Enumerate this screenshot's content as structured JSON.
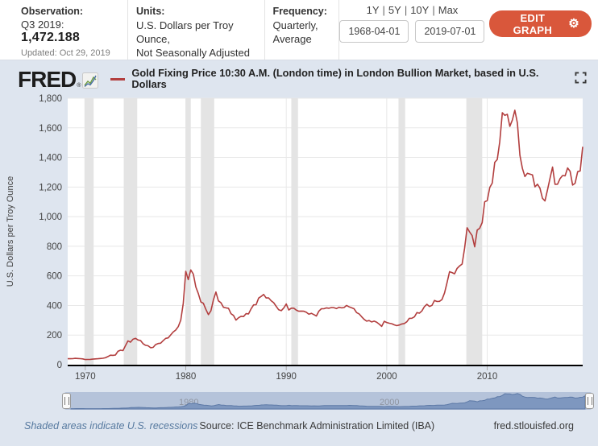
{
  "header": {
    "observation": {
      "label": "Observation:",
      "period": "Q3 2019:",
      "value": "1,472.188",
      "updated": "Updated: Oct 29, 2019"
    },
    "units": {
      "label": "Units:",
      "line1": "U.S. Dollars per Troy Ounce,",
      "line2": "Not Seasonally Adjusted"
    },
    "frequency": {
      "label": "Frequency:",
      "line1": "Quarterly,",
      "line2": "Average"
    },
    "controls": {
      "ranges": [
        "1Y",
        "5Y",
        "10Y",
        "Max"
      ],
      "separator": "|",
      "start_date": "1968-04-01",
      "end_date": "2019-07-01",
      "edit_button": "EDIT GRAPH",
      "gear_icon": "⚙"
    }
  },
  "brand": {
    "logo": "FRED",
    "registered": "®"
  },
  "slider": {
    "labels": [
      "1980",
      "2000"
    ]
  },
  "footer": {
    "recession_note": "Shaded areas indicate U.S. recessions",
    "source": "Source: ICE Benchmark Administration Limited (IBA)",
    "site": "fred.stlouisfed.org"
  },
  "chart_data": {
    "type": "line",
    "title": "Gold Fixing Price 10:30 A.M. (London time) in London Bullion Market, based in U.S. Dollars",
    "ylabel": "U.S. Dollars per Troy Ounce",
    "xlabel": "",
    "x_range": [
      1968.25,
      2019.5
    ],
    "ylim": [
      0,
      1800
    ],
    "y_ticks": [
      0,
      200,
      400,
      600,
      800,
      1000,
      1200,
      1400,
      1600,
      1800
    ],
    "y_tick_labels": [
      "0",
      "200",
      "400",
      "600",
      "800",
      "1,000",
      "1,200",
      "1,400",
      "1,600",
      "1,800"
    ],
    "x_ticks": [
      1970,
      1980,
      1990,
      2000,
      2010
    ],
    "grid": true,
    "legend_position": "top",
    "line_color": "#b23e3e",
    "recession_color": "#e4e4e4",
    "grid_color": "#e8e8e8",
    "recessions": [
      [
        1969.92,
        1970.83
      ],
      [
        1973.83,
        1975.17
      ],
      [
        1980.0,
        1980.5
      ],
      [
        1981.5,
        1982.83
      ],
      [
        1990.5,
        1991.17
      ],
      [
        2001.17,
        2001.83
      ],
      [
        2007.92,
        2009.5
      ]
    ],
    "series": [
      {
        "name": "Gold Fixing Price 10:30 A.M. (London time) in London Bullion Market, based in U.S. Dollars",
        "points": [
          [
            1968.25,
            40
          ],
          [
            1968.5,
            40
          ],
          [
            1968.75,
            41
          ],
          [
            1969,
            43
          ],
          [
            1969.25,
            42
          ],
          [
            1969.5,
            41
          ],
          [
            1969.75,
            39
          ],
          [
            1970,
            35
          ],
          [
            1970.25,
            35.5
          ],
          [
            1970.5,
            36
          ],
          [
            1970.75,
            37.5
          ],
          [
            1971,
            39
          ],
          [
            1971.25,
            40
          ],
          [
            1971.5,
            42
          ],
          [
            1971.75,
            43.5
          ],
          [
            1972,
            47
          ],
          [
            1972.25,
            55
          ],
          [
            1972.5,
            64
          ],
          [
            1972.75,
            63
          ],
          [
            1973,
            65
          ],
          [
            1973.25,
            90
          ],
          [
            1973.5,
            98
          ],
          [
            1973.75,
            95
          ],
          [
            1974,
            129
          ],
          [
            1974.25,
            161
          ],
          [
            1974.5,
            152
          ],
          [
            1974.75,
            172
          ],
          [
            1975,
            178
          ],
          [
            1975.25,
            167
          ],
          [
            1975.5,
            163
          ],
          [
            1975.75,
            142
          ],
          [
            1976,
            131
          ],
          [
            1976.25,
            128
          ],
          [
            1976.5,
            115
          ],
          [
            1976.75,
            117
          ],
          [
            1977,
            136
          ],
          [
            1977.25,
            143
          ],
          [
            1977.5,
            145
          ],
          [
            1977.75,
            162
          ],
          [
            1978,
            178
          ],
          [
            1978.25,
            181
          ],
          [
            1978.5,
            201
          ],
          [
            1978.75,
            221
          ],
          [
            1979,
            234
          ],
          [
            1979.25,
            257
          ],
          [
            1979.5,
            301
          ],
          [
            1979.75,
            415
          ],
          [
            1980,
            631
          ],
          [
            1980.25,
            575
          ],
          [
            1980.5,
            640
          ],
          [
            1980.75,
            612
          ],
          [
            1981,
            525
          ],
          [
            1981.25,
            480
          ],
          [
            1981.5,
            424
          ],
          [
            1981.75,
            415
          ],
          [
            1982,
            374
          ],
          [
            1982.25,
            338
          ],
          [
            1982.5,
            364
          ],
          [
            1982.75,
            438
          ],
          [
            1983,
            491
          ],
          [
            1983.25,
            431
          ],
          [
            1983.5,
            419
          ],
          [
            1983.75,
            388
          ],
          [
            1984,
            384
          ],
          [
            1984.25,
            381
          ],
          [
            1984.5,
            345
          ],
          [
            1984.75,
            333
          ],
          [
            1985,
            301
          ],
          [
            1985.25,
            317
          ],
          [
            1985.5,
            327
          ],
          [
            1985.75,
            325
          ],
          [
            1986,
            345
          ],
          [
            1986.25,
            343
          ],
          [
            1986.5,
            377
          ],
          [
            1986.75,
            404
          ],
          [
            1987,
            405
          ],
          [
            1987.25,
            450
          ],
          [
            1987.5,
            461
          ],
          [
            1987.75,
            475
          ],
          [
            1988,
            451
          ],
          [
            1988.25,
            451
          ],
          [
            1988.5,
            432
          ],
          [
            1988.75,
            419
          ],
          [
            1989,
            394
          ],
          [
            1989.25,
            371
          ],
          [
            1989.5,
            365
          ],
          [
            1989.75,
            383
          ],
          [
            1990,
            410
          ],
          [
            1990.25,
            369
          ],
          [
            1990.5,
            382
          ],
          [
            1990.75,
            382
          ],
          [
            1991,
            368
          ],
          [
            1991.25,
            361
          ],
          [
            1991.5,
            362
          ],
          [
            1991.75,
            361
          ],
          [
            1992,
            354
          ],
          [
            1992.25,
            341
          ],
          [
            1992.5,
            347
          ],
          [
            1992.75,
            338
          ],
          [
            1993,
            329
          ],
          [
            1993.25,
            362
          ],
          [
            1993.5,
            378
          ],
          [
            1993.75,
            378
          ],
          [
            1994,
            384
          ],
          [
            1994.25,
            381
          ],
          [
            1994.5,
            386
          ],
          [
            1994.75,
            385
          ],
          [
            1995,
            379
          ],
          [
            1995.25,
            388
          ],
          [
            1995.5,
            384
          ],
          [
            1995.75,
            386
          ],
          [
            1996,
            400
          ],
          [
            1996.25,
            391
          ],
          [
            1996.5,
            385
          ],
          [
            1996.75,
            378
          ],
          [
            1997,
            352
          ],
          [
            1997.25,
            343
          ],
          [
            1997.5,
            324
          ],
          [
            1997.75,
            306
          ],
          [
            1998,
            294
          ],
          [
            1998.25,
            298
          ],
          [
            1998.5,
            289
          ],
          [
            1998.75,
            294
          ],
          [
            1999,
            287
          ],
          [
            1999.25,
            274
          ],
          [
            1999.5,
            259
          ],
          [
            1999.75,
            293
          ],
          [
            2000,
            285
          ],
          [
            2000.25,
            280
          ],
          [
            2000.5,
            277
          ],
          [
            2000.75,
            269
          ],
          [
            2001,
            264
          ],
          [
            2001.25,
            268
          ],
          [
            2001.5,
            275
          ],
          [
            2001.75,
            278
          ],
          [
            2002,
            290
          ],
          [
            2002.25,
            313
          ],
          [
            2002.5,
            314
          ],
          [
            2002.75,
            323
          ],
          [
            2003,
            352
          ],
          [
            2003.25,
            348
          ],
          [
            2003.5,
            363
          ],
          [
            2003.75,
            392
          ],
          [
            2004,
            408
          ],
          [
            2004.25,
            393
          ],
          [
            2004.5,
            401
          ],
          [
            2004.75,
            434
          ],
          [
            2005,
            427
          ],
          [
            2005.25,
            428
          ],
          [
            2005.5,
            440
          ],
          [
            2005.75,
            485
          ],
          [
            2006,
            554
          ],
          [
            2006.25,
            628
          ],
          [
            2006.5,
            622
          ],
          [
            2006.75,
            614
          ],
          [
            2007,
            650
          ],
          [
            2007.25,
            667
          ],
          [
            2007.5,
            680
          ],
          [
            2007.75,
            788
          ],
          [
            2008,
            925
          ],
          [
            2008.25,
            896
          ],
          [
            2008.5,
            872
          ],
          [
            2008.75,
            796
          ],
          [
            2009,
            909
          ],
          [
            2009.25,
            922
          ],
          [
            2009.5,
            960
          ],
          [
            2009.75,
            1100
          ],
          [
            2010,
            1109
          ],
          [
            2010.25,
            1197
          ],
          [
            2010.5,
            1227
          ],
          [
            2010.75,
            1367
          ],
          [
            2011,
            1386
          ],
          [
            2011.25,
            1506
          ],
          [
            2011.5,
            1702
          ],
          [
            2011.75,
            1684
          ],
          [
            2012,
            1691
          ],
          [
            2012.25,
            1610
          ],
          [
            2012.5,
            1652
          ],
          [
            2012.75,
            1719
          ],
          [
            2013,
            1632
          ],
          [
            2013.25,
            1415
          ],
          [
            2013.5,
            1326
          ],
          [
            2013.75,
            1271
          ],
          [
            2014,
            1293
          ],
          [
            2014.25,
            1288
          ],
          [
            2014.5,
            1282
          ],
          [
            2014.75,
            1201
          ],
          [
            2015,
            1219
          ],
          [
            2015.25,
            1192
          ],
          [
            2015.5,
            1124
          ],
          [
            2015.75,
            1106
          ],
          [
            2016,
            1182
          ],
          [
            2016.25,
            1260
          ],
          [
            2016.5,
            1335
          ],
          [
            2016.75,
            1218
          ],
          [
            2017,
            1219
          ],
          [
            2017.25,
            1257
          ],
          [
            2017.5,
            1278
          ],
          [
            2017.75,
            1276
          ],
          [
            2018,
            1329
          ],
          [
            2018.25,
            1306
          ],
          [
            2018.5,
            1213
          ],
          [
            2018.75,
            1226
          ],
          [
            2019,
            1304
          ],
          [
            2019.25,
            1309
          ],
          [
            2019.5,
            1472
          ]
        ]
      }
    ]
  }
}
